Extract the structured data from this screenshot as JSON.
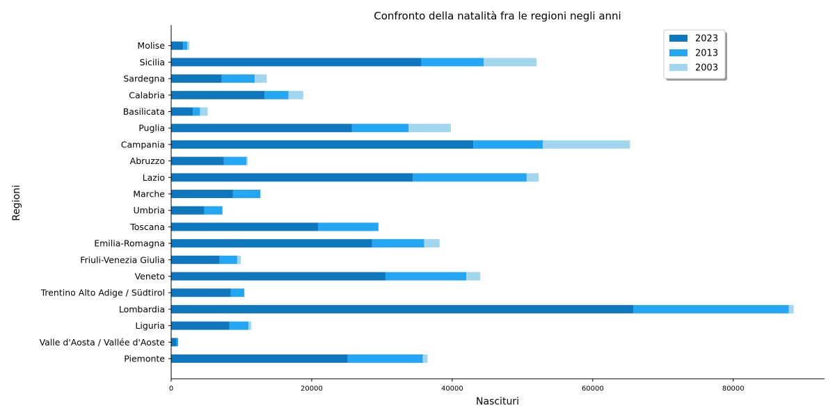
{
  "chart_data": {
    "type": "bar",
    "orientation": "horizontal",
    "stacked": true,
    "title": "Confronto della natalità fra le regioni negli anni",
    "xlabel": "Nascituri",
    "ylabel": "Regioni",
    "xlim": [
      0,
      93000
    ],
    "xticks": [
      0,
      20000,
      40000,
      60000,
      80000
    ],
    "grid": false,
    "legend_position": "top-right",
    "categories": [
      "Piemonte",
      "Valle d'Aosta / Vallée d'Aoste",
      "Liguria",
      "Lombardia",
      "Trentino Alto Adige / Südtirol",
      "Veneto",
      "Friuli-Venezia Giulia",
      "Emilia-Romagna",
      "Toscana",
      "Umbria",
      "Marche",
      "Lazio",
      "Abruzzo",
      "Campania",
      "Puglia",
      "Basilicata",
      "Calabria",
      "Sardegna",
      "Sicilia",
      "Molise"
    ],
    "series": [
      {
        "name": "2023",
        "color": "#0f77bd",
        "values": [
          25100,
          750,
          8300,
          65800,
          8500,
          30500,
          6900,
          28600,
          20900,
          4700,
          8800,
          34400,
          7500,
          43000,
          25700,
          3100,
          13300,
          7200,
          35600,
          1700
        ]
      },
      {
        "name": "2013",
        "color": "#23a7f5",
        "values": [
          10700,
          250,
          2700,
          22100,
          1900,
          11500,
          2500,
          7400,
          8600,
          2600,
          3900,
          16200,
          3200,
          9900,
          8100,
          1000,
          3400,
          4700,
          8900,
          600
        ]
      },
      {
        "name": "2003",
        "color": "#a2d6ef",
        "values": [
          700,
          0,
          400,
          700,
          0,
          2000,
          500,
          2200,
          0,
          0,
          0,
          1700,
          200,
          12400,
          6000,
          1100,
          2100,
          1700,
          7500,
          300
        ]
      }
    ]
  }
}
